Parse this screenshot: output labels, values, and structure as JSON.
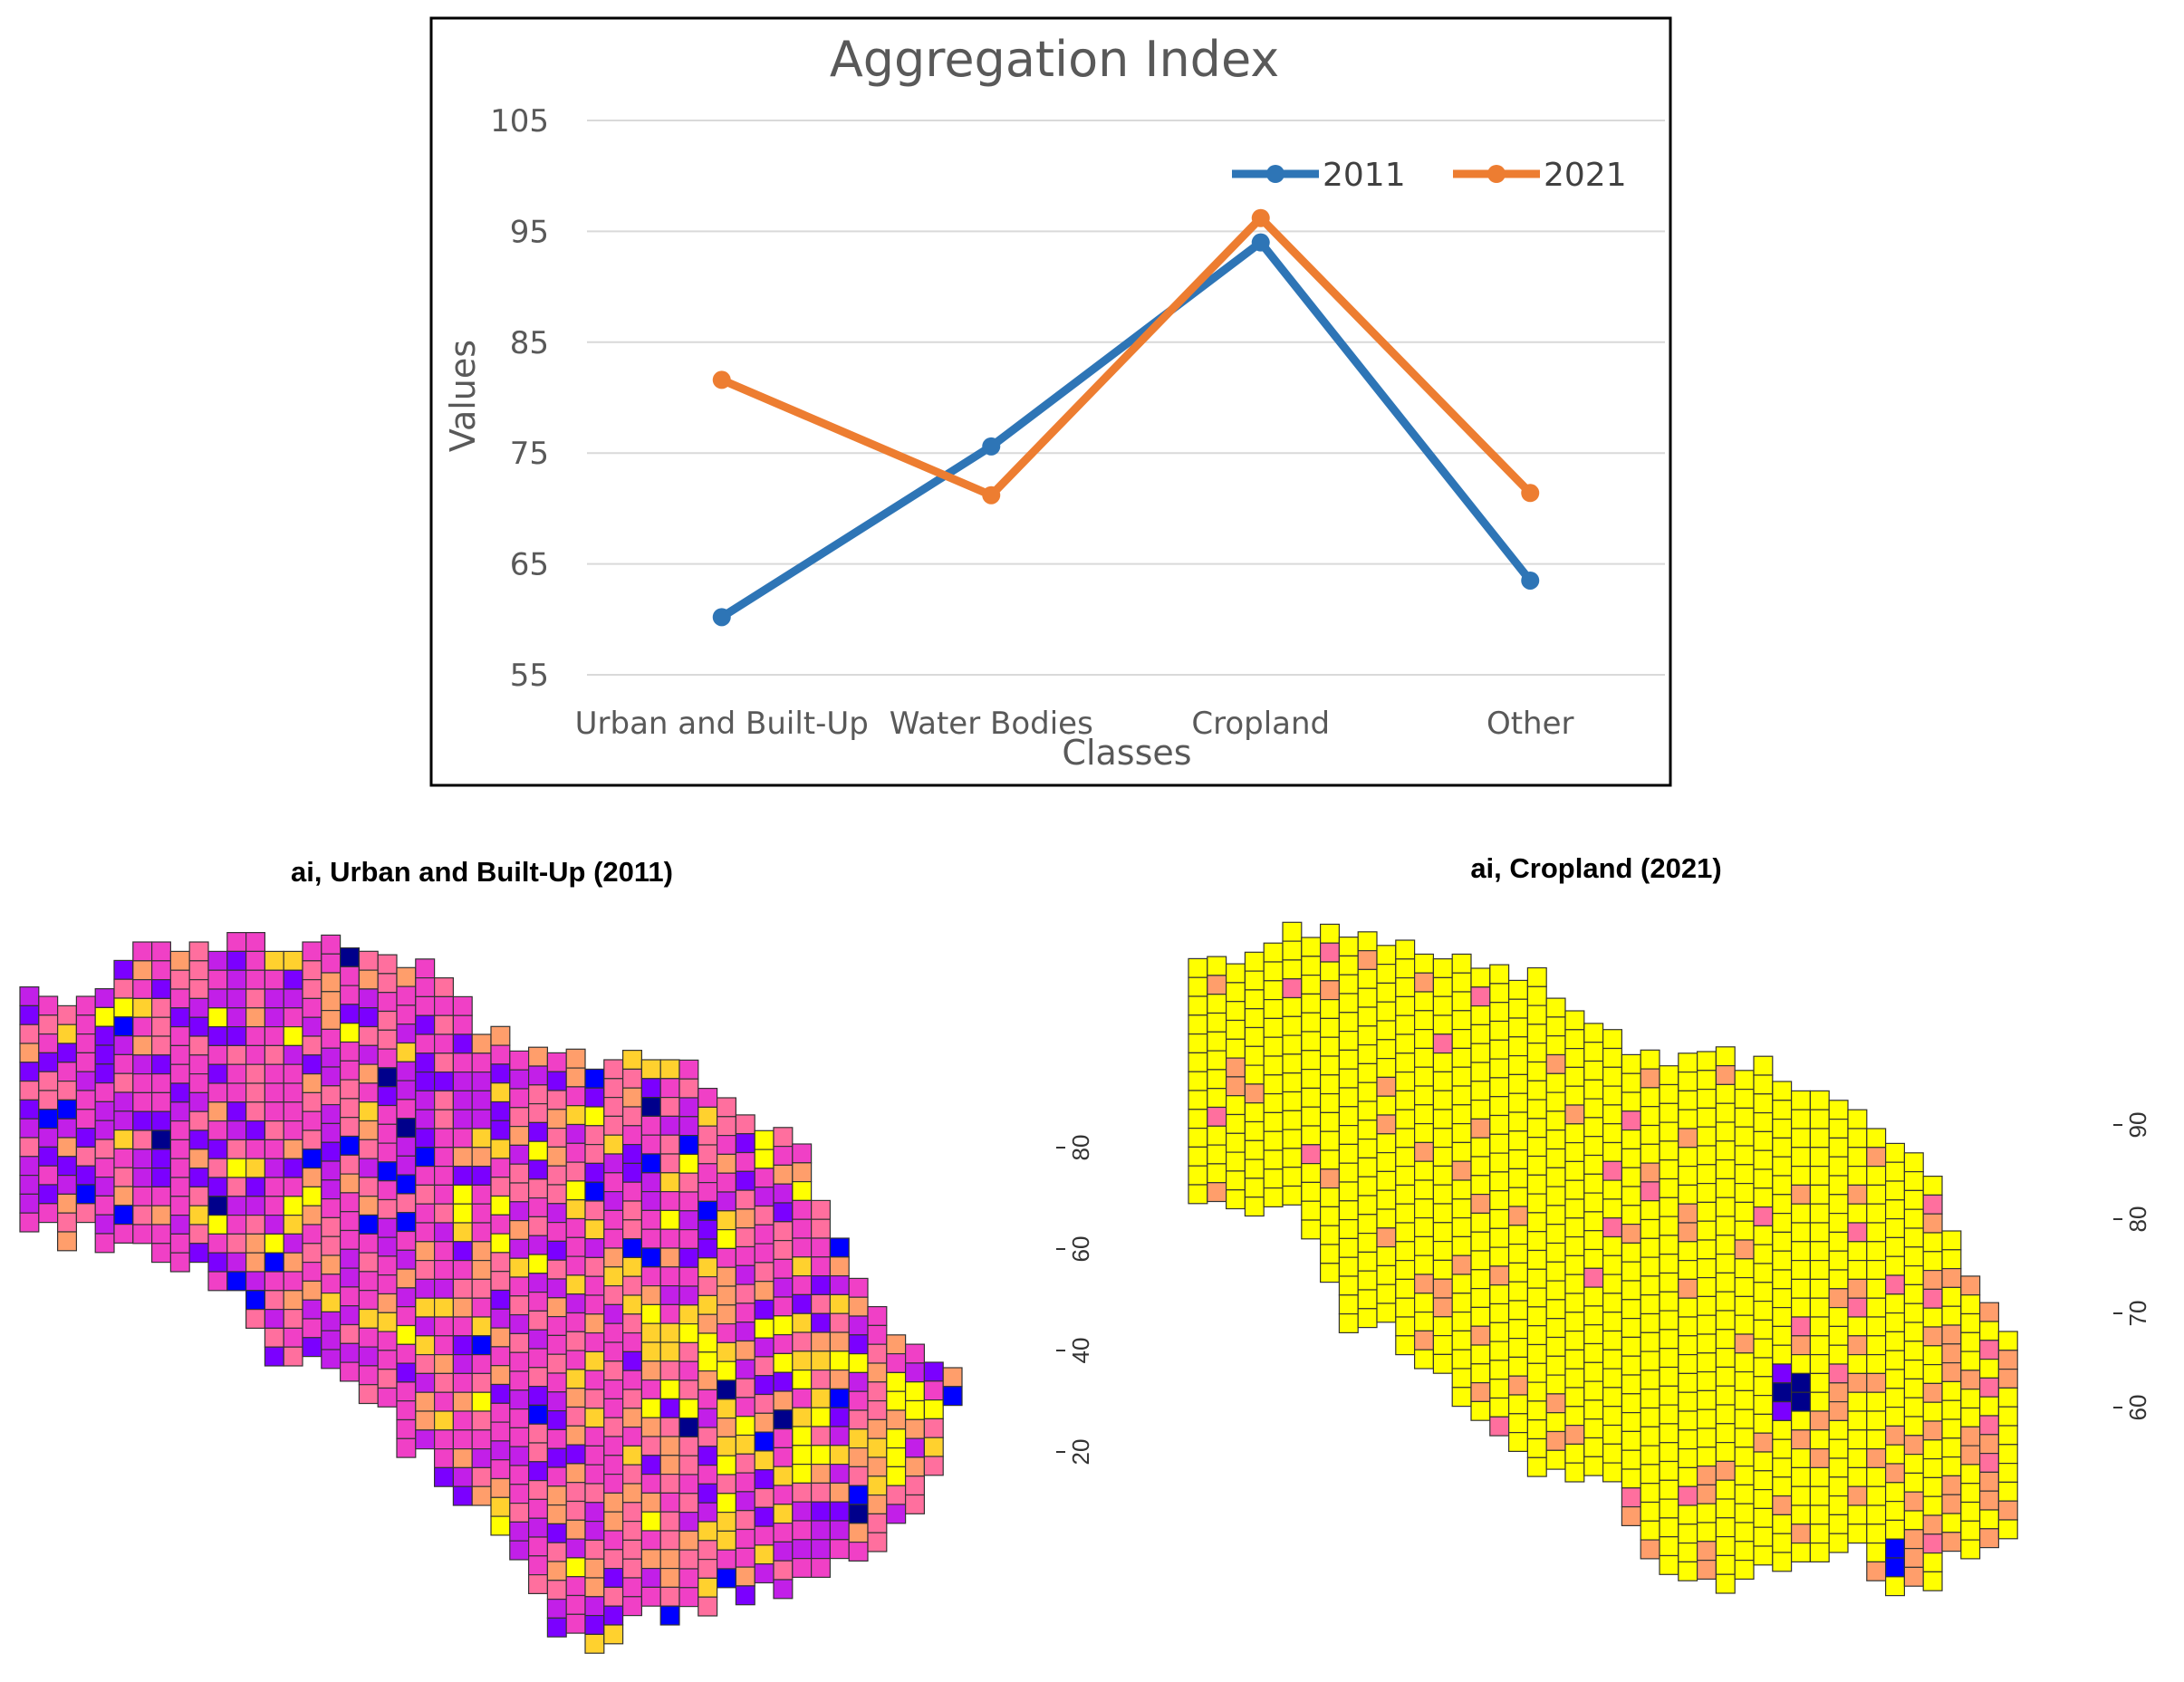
{
  "chart_data": [
    {
      "type": "line",
      "title": "Aggregation Index",
      "xlabel": "Classes",
      "ylabel": "Values",
      "categories": [
        "Urban and Built-Up",
        "Water Bodies",
        "Cropland",
        "Other"
      ],
      "series": [
        {
          "name": "2011",
          "color": "#2E75B6",
          "values": [
            60.2,
            75.6,
            94.0,
            63.5
          ]
        },
        {
          "name": "2021",
          "color": "#ED7D31",
          "values": [
            81.6,
            71.2,
            96.2,
            71.4
          ]
        }
      ],
      "ylim": [
        55,
        105
      ],
      "yticks": [
        "55",
        "65",
        "75",
        "85",
        "95",
        "105"
      ],
      "grid": true,
      "legend": "top-right"
    },
    {
      "type": "heatmap",
      "title": "ai, Urban and Built-Up (2011)",
      "colorbar_ticks": [
        "20",
        "40",
        "60",
        "80"
      ],
      "colorbar_range": [
        0,
        100
      ],
      "palette": [
        "#00008B",
        "#0000FF",
        "#7B00FF",
        "#C21FE8",
        "#F040C6",
        "#FF6F9E",
        "#FF9E6B",
        "#FFD12E",
        "#FFFF00"
      ]
    },
    {
      "type": "heatmap",
      "title": "ai, Cropland (2021)",
      "colorbar_ticks": [
        "60",
        "70",
        "80",
        "90"
      ],
      "colorbar_range": [
        50,
        100
      ],
      "palette": [
        "#00008B",
        "#0000FF",
        "#7B00FF",
        "#C21FE8",
        "#F040C6",
        "#FF6F9E",
        "#FF9E6B",
        "#FFD12E",
        "#FFFF00"
      ]
    }
  ]
}
